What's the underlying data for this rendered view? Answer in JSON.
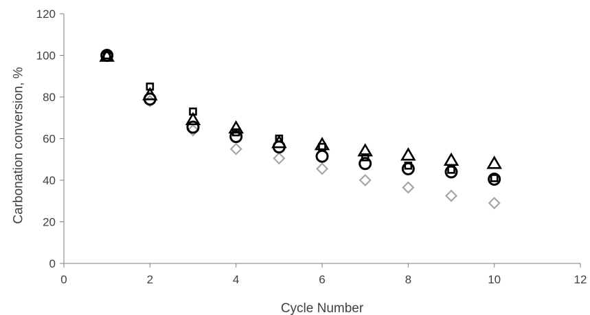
{
  "chart_data": {
    "type": "scatter",
    "title": "",
    "xlabel": "Cycle Number",
    "ylabel": "Carbonation conversion, %",
    "xlim": [
      0,
      12
    ],
    "ylim": [
      0,
      120
    ],
    "xticks": [
      0,
      2,
      4,
      6,
      8,
      10,
      12
    ],
    "yticks": [
      0,
      20,
      40,
      60,
      80,
      100,
      120
    ],
    "grid": false,
    "legend": "none",
    "series": [
      {
        "marker": "diamond",
        "color": "#a6a6a6",
        "x": [
          1,
          2,
          3,
          4,
          5,
          6,
          7,
          8,
          9,
          10
        ],
        "y": [
          100,
          78,
          64,
          55,
          50.5,
          45.5,
          40,
          36.5,
          32.5,
          29
        ]
      },
      {
        "marker": "square",
        "color": "#000000",
        "x": [
          1,
          2,
          3,
          4,
          5,
          6,
          7,
          8,
          9,
          10
        ],
        "y": [
          100,
          85,
          73,
          63,
          60,
          56,
          51,
          47,
          45,
          41
        ]
      },
      {
        "marker": "triangle",
        "color": "#000000",
        "x": [
          1,
          2,
          3,
          4,
          5,
          6,
          7,
          8,
          9,
          10
        ],
        "y": [
          99.5,
          81,
          69,
          65,
          58,
          57,
          54,
          52,
          49.5,
          48
        ]
      },
      {
        "marker": "circle",
        "color": "#000000",
        "x": [
          1,
          2,
          3,
          4,
          5,
          6,
          7,
          8,
          9,
          10
        ],
        "y": [
          100,
          79,
          65.5,
          61,
          56,
          51.5,
          48,
          45.5,
          44,
          40.5
        ]
      }
    ]
  }
}
